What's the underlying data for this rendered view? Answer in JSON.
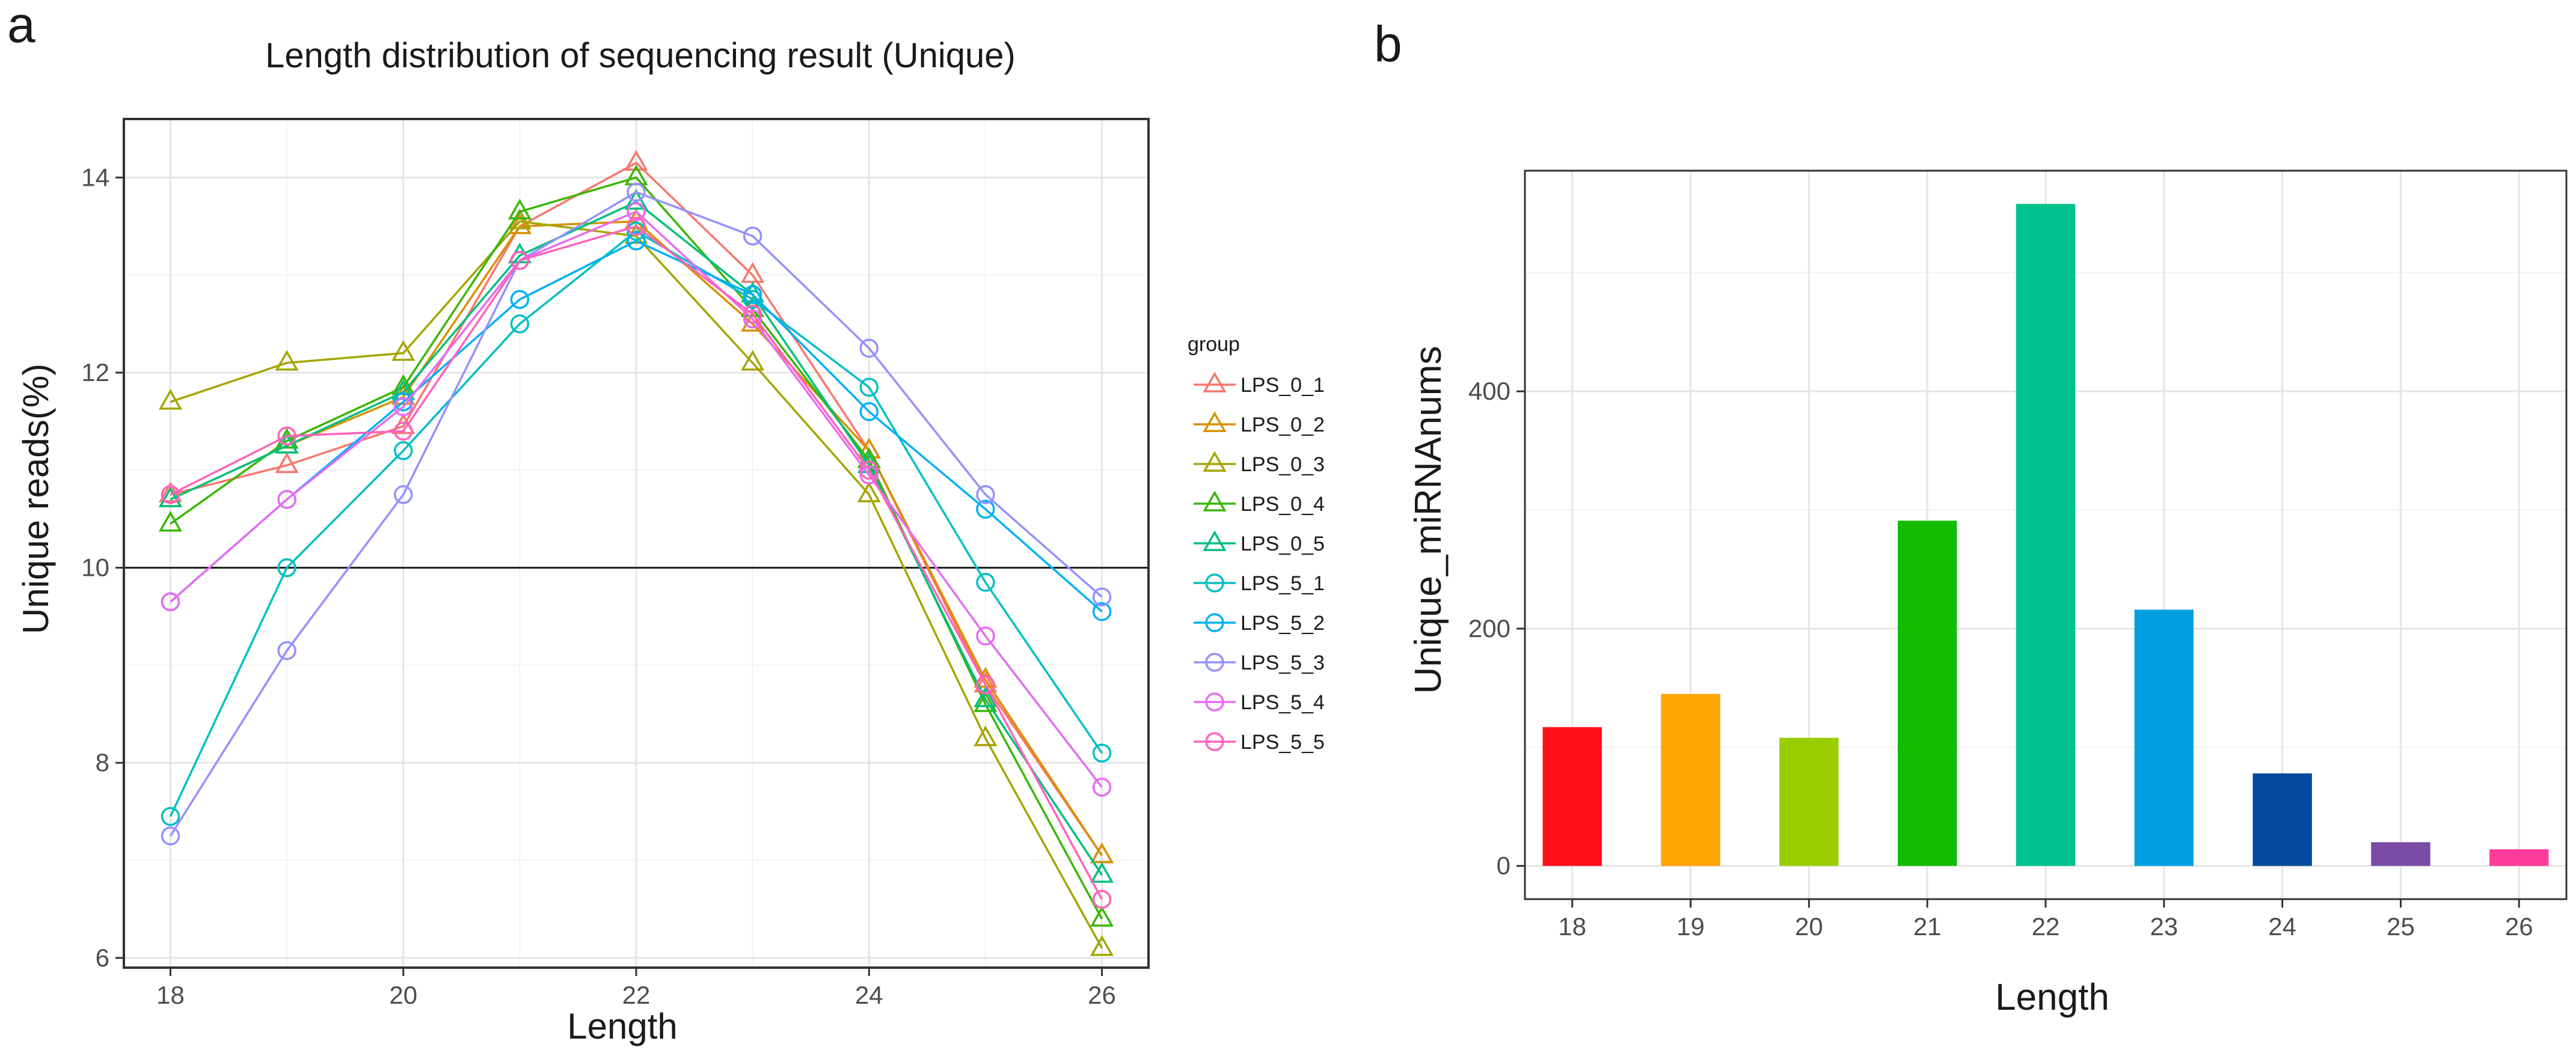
{
  "panels": {
    "a": {
      "label": "a"
    },
    "b": {
      "label": "b"
    }
  },
  "chart_data": [
    {
      "type": "line",
      "panel": "a",
      "title": "Length distribution of sequencing result (Unique)",
      "xlabel": "Length",
      "ylabel": "Unique reads(%)",
      "xlim": [
        17.6,
        26.4
      ],
      "ylim": [
        5.9,
        14.6
      ],
      "xticks": [
        18,
        20,
        22,
        24,
        26
      ],
      "yticks": [
        6,
        8,
        10,
        12,
        14
      ],
      "reference_line": 10,
      "grid": true,
      "legend": {
        "title": "group",
        "placement": "right"
      },
      "x": [
        18,
        19,
        20,
        21,
        22,
        23,
        24,
        25,
        26
      ],
      "series": [
        {
          "name": "LPS_0_1",
          "marker": "triangle",
          "color": "#F8766D",
          "values": [
            10.75,
            11.05,
            11.45,
            13.5,
            14.15,
            13.0,
            11.2,
            8.8,
            7.05
          ]
        },
        {
          "name": "LPS_0_2",
          "marker": "triangle",
          "color": "#D89000",
          "values": [
            10.7,
            11.25,
            11.75,
            13.5,
            13.55,
            12.5,
            11.2,
            8.85,
            7.05
          ]
        },
        {
          "name": "LPS_0_3",
          "marker": "triangle",
          "color": "#A3A500",
          "values": [
            11.7,
            12.1,
            12.2,
            13.55,
            13.4,
            12.1,
            10.75,
            8.25,
            6.1
          ]
        },
        {
          "name": "LPS_0_4",
          "marker": "triangle",
          "color": "#39B600",
          "values": [
            10.45,
            11.3,
            11.85,
            13.65,
            14.0,
            12.65,
            11.1,
            8.6,
            6.4
          ]
        },
        {
          "name": "LPS_0_5",
          "marker": "triangle",
          "color": "#00BF7D",
          "values": [
            10.7,
            11.25,
            11.8,
            13.2,
            13.75,
            12.8,
            11.05,
            8.65,
            6.85
          ]
        },
        {
          "name": "LPS_5_1",
          "marker": "circle",
          "color": "#00BFC4",
          "values": [
            7.45,
            10.0,
            11.2,
            12.5,
            13.45,
            12.75,
            11.85,
            9.85,
            8.1
          ]
        },
        {
          "name": "LPS_5_2",
          "marker": "circle",
          "color": "#00B0F6",
          "values": [
            9.65,
            10.7,
            11.7,
            12.75,
            13.35,
            12.8,
            11.6,
            10.6,
            9.55
          ]
        },
        {
          "name": "LPS_5_3",
          "marker": "circle",
          "color": "#9590FF",
          "values": [
            7.25,
            9.15,
            10.75,
            13.15,
            13.85,
            13.4,
            12.25,
            10.75,
            9.7
          ]
        },
        {
          "name": "LPS_5_4",
          "marker": "circle",
          "color": "#E76BF3",
          "values": [
            9.65,
            10.7,
            11.65,
            13.15,
            13.65,
            12.55,
            10.95,
            9.3,
            7.75
          ]
        },
        {
          "name": "LPS_5_5",
          "marker": "circle",
          "color": "#FF62BC",
          "values": [
            10.75,
            11.35,
            11.4,
            13.15,
            13.5,
            12.6,
            11.0,
            8.8,
            6.6
          ]
        }
      ]
    },
    {
      "type": "bar",
      "panel": "b",
      "title": "",
      "xlabel": "Length",
      "ylabel": "Unique_miRNAnums",
      "categories": [
        "18",
        "19",
        "20",
        "21",
        "22",
        "23",
        "24",
        "25",
        "26"
      ],
      "values": [
        117,
        145,
        108,
        291,
        558,
        216,
        78,
        20,
        14
      ],
      "colors": [
        "#FF0F1B",
        "#FFA500",
        "#9ACD00",
        "#14BC00",
        "#00C28F",
        "#00A0E0",
        "#0048A0",
        "#7A4CA8",
        "#FF3C9A"
      ],
      "ylim": [
        -28,
        586
      ],
      "yticks": [
        0,
        200,
        400
      ],
      "grid": true
    }
  ]
}
